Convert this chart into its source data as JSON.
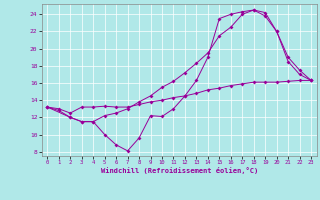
{
  "xlabel": "Windchill (Refroidissement éolien,°C)",
  "bg_color": "#b0e8e8",
  "line_color": "#990099",
  "grid_color": "#ffffff",
  "xlim": [
    -0.5,
    23.5
  ],
  "ylim": [
    7.5,
    25.2
  ],
  "xticks": [
    0,
    1,
    2,
    3,
    4,
    5,
    6,
    7,
    8,
    9,
    10,
    11,
    12,
    13,
    14,
    15,
    16,
    17,
    18,
    19,
    20,
    21,
    22,
    23
  ],
  "yticks": [
    8,
    10,
    12,
    14,
    16,
    18,
    20,
    22,
    24
  ],
  "line1_x": [
    0,
    1,
    2,
    3,
    4,
    5,
    6,
    7,
    8,
    9,
    10,
    11,
    12,
    13,
    14,
    15,
    16,
    17,
    18,
    19,
    20,
    21,
    22,
    23
  ],
  "line1_y": [
    13.2,
    12.8,
    12.0,
    11.5,
    11.5,
    10.0,
    8.8,
    8.1,
    9.6,
    12.2,
    12.1,
    13.0,
    14.5,
    16.3,
    19.0,
    23.5,
    24.0,
    24.3,
    24.5,
    23.8,
    22.0,
    19.0,
    17.5,
    16.3
  ],
  "line2_x": [
    0,
    2,
    3,
    4,
    5,
    6,
    7,
    8,
    9,
    10,
    11,
    12,
    13,
    14,
    15,
    16,
    17,
    18,
    19,
    20,
    21,
    22,
    23
  ],
  "line2_y": [
    13.2,
    12.0,
    11.5,
    11.5,
    12.2,
    12.5,
    13.0,
    13.8,
    14.5,
    15.5,
    16.2,
    17.2,
    18.3,
    19.5,
    21.5,
    22.5,
    24.0,
    24.5,
    24.2,
    22.0,
    18.5,
    17.0,
    16.3
  ],
  "line3_x": [
    0,
    1,
    2,
    3,
    4,
    5,
    6,
    7,
    8,
    9,
    10,
    11,
    12,
    13,
    14,
    15,
    16,
    17,
    18,
    19,
    20,
    21,
    22,
    23
  ],
  "line3_y": [
    13.2,
    13.0,
    12.5,
    13.2,
    13.2,
    13.3,
    13.2,
    13.2,
    13.5,
    13.8,
    14.0,
    14.3,
    14.5,
    14.8,
    15.2,
    15.4,
    15.7,
    15.9,
    16.1,
    16.1,
    16.1,
    16.2,
    16.3,
    16.3
  ]
}
